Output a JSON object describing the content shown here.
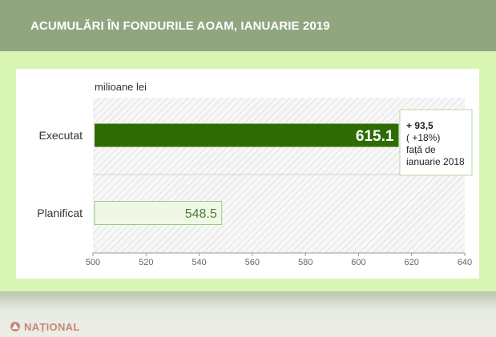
{
  "header": {
    "title": "ACUMULĂRI ÎN FONDURILE AOAM, IANUARIE 2019"
  },
  "chart_data": {
    "type": "bar",
    "orientation": "horizontal",
    "unit_label": "milioane lei",
    "categories": [
      "Executat",
      "Planificat"
    ],
    "values": [
      615.1,
      548.5
    ],
    "value_labels": [
      "615.1",
      "548.5"
    ],
    "xlim": [
      500,
      640
    ],
    "x_ticks": [
      500,
      520,
      540,
      560,
      580,
      600,
      620,
      640
    ],
    "grid": "hatched background",
    "annotation": {
      "target": "Executat",
      "lines": [
        "+ 93,5",
        "( +18%)",
        "față de",
        "ianuarie 2018"
      ]
    },
    "colors": {
      "executat_fill": "#2e6b04",
      "planificat_fill": "#eff8e4",
      "planificat_border": "#9cc98a",
      "axis": "#999999"
    }
  },
  "brand": {
    "logo_text": "NAȚIONAL"
  }
}
